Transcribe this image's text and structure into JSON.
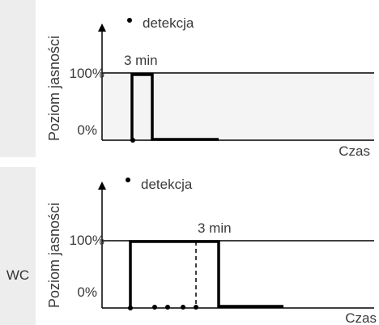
{
  "room_label": "WC",
  "legend_label": "detekcja",
  "y_axis_label": "Poziom jasności",
  "level_high_label": "100%",
  "level_low_label": "0%",
  "x_axis_label": "Czas",
  "duration_label": "3 min",
  "colors": {
    "side_strip": "#ededed",
    "band": "#f4f4f4",
    "line": "#000000",
    "text": "#3a3a3a"
  }
}
